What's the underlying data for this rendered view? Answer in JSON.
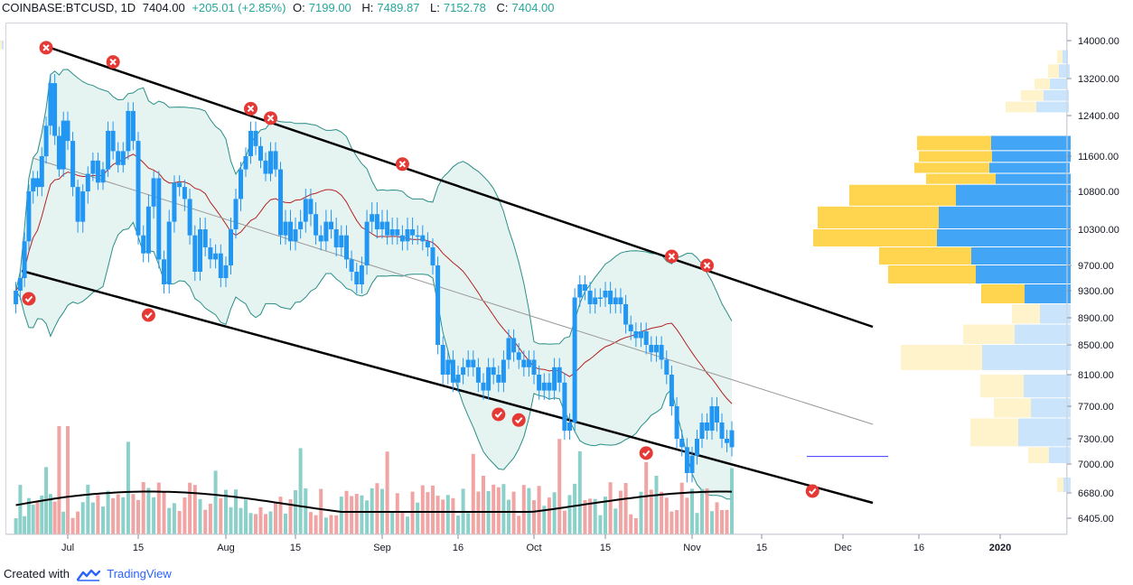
{
  "header": {
    "symbol": "COINBASE:BTCUSD, 1D",
    "last": "7404.00",
    "change": "+205.01 (+2.85%)",
    "o_label": "O:",
    "o_value": "7199.00",
    "h_label": "H:",
    "h_value": "7489.87",
    "l_label": "L:",
    "l_value": "7152.78",
    "c_label": "C:",
    "c_value": "7404.00"
  },
  "footer": {
    "created_with": "Created with",
    "brand": "TradingView"
  },
  "colors": {
    "up": "#2196f3",
    "down": "#2196f3",
    "band_fill": "#e6f4f1",
    "band_line": "#2a8e87",
    "sma": "#b22222",
    "channel": "#000000",
    "midline": "#999999",
    "vol_up": "#80cbc4",
    "vol_down": "#ef9a9a",
    "sell_marker": "#e53935",
    "buy_marker": "#e53935",
    "vp_up": "#ffd54f",
    "vp_down": "#42a5f5",
    "vp_up_light": "#fff3cc",
    "vp_down_light": "#c9e4fb"
  },
  "chart_data": {
    "type": "candlestick",
    "title": "",
    "symbol": "COINBASE:BTCUSD",
    "interval": "1D",
    "y_ticks": [
      14000,
      13200,
      12400,
      11600,
      10800,
      10300,
      9700,
      9300,
      8900,
      8500,
      8100,
      7700,
      7300,
      7000,
      6680,
      6405
    ],
    "y_tick_labels": [
      "14000.00",
      "13200.00",
      "12400.00",
      "11600.00",
      "10800.00",
      "10300.00",
      "9700.00",
      "9300.00",
      "8900.00",
      "8500.00",
      "8100.00",
      "7700.00",
      "7300.00",
      "7000.00",
      "6680.00",
      "6405.00"
    ],
    "x_tick_labels": [
      {
        "label": "Jul",
        "date": "2019-07-01"
      },
      {
        "label": "15",
        "date": "2019-07-15"
      },
      {
        "label": "Aug",
        "date": "2019-08-01"
      },
      {
        "label": "15",
        "date": "2019-08-15"
      },
      {
        "label": "Sep",
        "date": "2019-09-01"
      },
      {
        "label": "16",
        "date": "2019-09-16"
      },
      {
        "label": "Oct",
        "date": "2019-10-01"
      },
      {
        "label": "15",
        "date": "2019-10-15"
      },
      {
        "label": "Nov",
        "date": "2019-11-01"
      },
      {
        "label": "15",
        "date": "2019-11-15"
      },
      {
        "label": "Dec",
        "date": "2019-12-01"
      },
      {
        "label": "16",
        "date": "2019-12-16"
      },
      {
        "label": "2020",
        "date": "2020-01-01"
      }
    ],
    "closes": [
      9300,
      9500,
      10100,
      10800,
      11100,
      10900,
      11600,
      12200,
      13100,
      12000,
      11300,
      12300,
      11900,
      10900,
      10400,
      10800,
      11200,
      11500,
      11000,
      11300,
      12100,
      11700,
      11400,
      11700,
      12500,
      11900,
      10200,
      9900,
      10600,
      11100,
      9800,
      9400,
      10400,
      11000,
      10900,
      10700,
      10200,
      9600,
      10300,
      10000,
      9800,
      9900,
      9500,
      9700,
      10300,
      10700,
      11300,
      11600,
      12100,
      11800,
      11500,
      11200,
      11700,
      11300,
      10200,
      10400,
      10100,
      10300,
      10400,
      10700,
      10500,
      10200,
      10100,
      10400,
      10300,
      10000,
      10200,
      9800,
      9600,
      9400,
      9700,
      10400,
      10500,
      10300,
      10400,
      10200,
      10300,
      10200,
      10100,
      10300,
      10200,
      10200,
      10100,
      10000,
      9700,
      8500,
      8100,
      8300,
      8000,
      8100,
      8200,
      8300,
      8200,
      8000,
      7900,
      8200,
      8100,
      8000,
      8300,
      8600,
      8400,
      8300,
      8200,
      8300,
      8100,
      7900,
      8000,
      7900,
      8200,
      8000,
      7400,
      7500,
      9200,
      9400,
      9300,
      9100,
      9200,
      9200,
      9300,
      9100,
      9200,
      9100,
      8800,
      8700,
      8600,
      8700,
      8500,
      8400,
      8500,
      8300,
      8100,
      7700,
      7300,
      7200,
      6900,
      7100,
      7300,
      7500,
      7400,
      7700,
      7500,
      7300,
      7250,
      7404
    ],
    "opens": [
      9100,
      9300,
      9500,
      10100,
      10800,
      11100,
      10900,
      11600,
      12200,
      13100,
      12000,
      11300,
      12300,
      11900,
      10900,
      10400,
      10800,
      11200,
      11500,
      11000,
      11300,
      12100,
      11700,
      11400,
      11700,
      12500,
      11900,
      10200,
      9900,
      10600,
      11100,
      9800,
      9400,
      10400,
      11000,
      10900,
      10700,
      10200,
      9600,
      10300,
      10000,
      9800,
      9900,
      9500,
      9700,
      10300,
      10700,
      11300,
      11600,
      12100,
      11800,
      11500,
      11200,
      11700,
      11300,
      10200,
      10400,
      10100,
      10300,
      10400,
      10700,
      10500,
      10200,
      10100,
      10400,
      10300,
      10000,
      10200,
      9800,
      9600,
      9400,
      9700,
      10400,
      10500,
      10300,
      10400,
      10200,
      10300,
      10200,
      10100,
      10300,
      10200,
      10200,
      10100,
      10000,
      9700,
      8500,
      8100,
      8300,
      8000,
      8100,
      8200,
      8300,
      8200,
      8000,
      7900,
      8200,
      8100,
      8000,
      8300,
      8600,
      8400,
      8300,
      8200,
      8300,
      8100,
      7900,
      8000,
      7900,
      8200,
      8000,
      7400,
      7500,
      9200,
      9400,
      9300,
      9100,
      9200,
      9200,
      9300,
      9100,
      9200,
      9100,
      8800,
      8700,
      8600,
      8700,
      8500,
      8400,
      8500,
      8300,
      8100,
      7700,
      7300,
      7200,
      6900,
      7100,
      7300,
      7500,
      7400,
      7700,
      7500,
      7300,
      7199
    ],
    "volume_scale_note": "",
    "sell_signals": [
      {
        "date": "2019-06-26",
        "price": 13850
      },
      {
        "date": "2019-07-10",
        "price": 13550
      },
      {
        "date": "2019-08-06",
        "price": 12550
      },
      {
        "date": "2019-08-10",
        "price": 12350
      },
      {
        "date": "2019-09-05",
        "price": 11420
      },
      {
        "date": "2019-10-28",
        "price": 9850
      },
      {
        "date": "2019-11-04",
        "price": 9700
      }
    ],
    "buy_signals": [
      {
        "date": "2019-06-22",
        "price": 9180
      },
      {
        "date": "2019-07-17",
        "price": 8940
      },
      {
        "date": "2019-09-24",
        "price": 7600
      },
      {
        "date": "2019-09-28",
        "price": 7530
      },
      {
        "date": "2019-10-23",
        "price": 7130
      },
      {
        "date": "2019-11-25",
        "price": 6700
      }
    ],
    "hline": {
      "price": 7090,
      "color": "#3a3aff"
    }
  }
}
